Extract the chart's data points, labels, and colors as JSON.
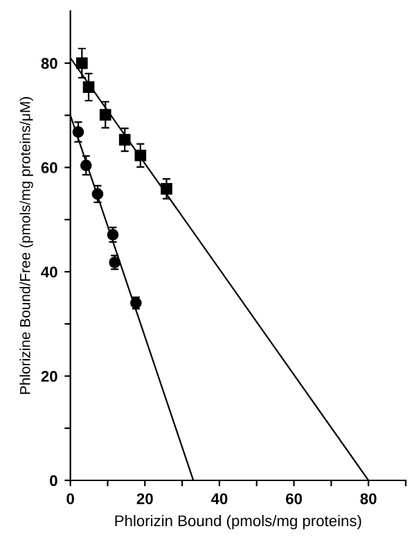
{
  "chart_data": {
    "type": "scatter",
    "xlabel": "Phlorizin Bound (pmols/mg proteins)",
    "ylabel": "Phlorizine Bound/Free (pmols/mg proteins/μM)",
    "xlim": [
      0,
      90
    ],
    "ylim": [
      0,
      90
    ],
    "xticks": [
      0,
      {
        "value": 10,
        "label": null
      },
      20,
      {
        "value": 30,
        "label": null
      },
      40,
      {
        "value": 50,
        "label": null
      },
      60,
      {
        "value": 70,
        "label": null
      },
      80,
      {
        "value": 90,
        "label": null
      }
    ],
    "yticks": [
      0,
      {
        "value": 10,
        "label": null
      },
      20,
      {
        "value": 30,
        "label": null
      },
      40,
      {
        "value": 50,
        "label": null
      },
      60,
      {
        "value": 70,
        "label": null
      },
      80
    ],
    "grid": false,
    "series": [
      {
        "marker": "square",
        "color": "#000000",
        "x": [
          3.1,
          4.9,
          9.4,
          14.6,
          18.8,
          25.8
        ],
        "values": [
          80.0,
          75.4,
          70.1,
          65.3,
          62.3,
          55.9
        ],
        "errors": [
          2.8,
          2.6,
          2.5,
          2.2,
          2.2,
          1.9
        ]
      },
      {
        "marker": "circle",
        "color": "#000000",
        "x": [
          2.1,
          4.2,
          7.3,
          11.4,
          11.9,
          17.6
        ],
        "values": [
          66.8,
          60.4,
          54.9,
          47.1,
          41.8,
          34.0
        ],
        "errors": [
          1.9,
          1.8,
          1.6,
          1.4,
          1.3,
          1.1
        ]
      },
      {
        "type": "line",
        "marker": "none",
        "color": "#000000",
        "x": [
          0,
          80
        ],
        "values": [
          81,
          0
        ]
      },
      {
        "type": "line",
        "marker": "none",
        "color": "#000000",
        "x": [
          0,
          33
        ],
        "values": [
          70,
          0
        ]
      }
    ]
  }
}
